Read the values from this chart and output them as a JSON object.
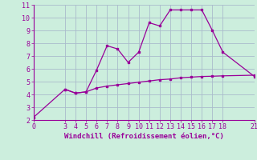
{
  "xlabel": "Windchill (Refroidissement éolien,°C)",
  "bg_color": "#cceedd",
  "grid_color": "#aabbcc",
  "line_color": "#990099",
  "line1_x": [
    0,
    3,
    4,
    5,
    6,
    7,
    8,
    9,
    10,
    11,
    12,
    13,
    14,
    15,
    16,
    17,
    18,
    21
  ],
  "line1_y": [
    2.2,
    4.4,
    4.1,
    4.2,
    4.5,
    4.65,
    4.75,
    4.85,
    4.95,
    5.05,
    5.15,
    5.2,
    5.3,
    5.35,
    5.4,
    5.42,
    5.45,
    5.5
  ],
  "line2_x": [
    3,
    4,
    5,
    6,
    7,
    8,
    9,
    10,
    11,
    12,
    13,
    14,
    15,
    16,
    17,
    18,
    21
  ],
  "line2_y": [
    4.4,
    4.1,
    4.2,
    5.9,
    7.8,
    7.55,
    6.5,
    7.3,
    9.6,
    9.35,
    10.6,
    10.6,
    10.6,
    10.6,
    9.0,
    7.3,
    5.4
  ],
  "xlim": [
    0,
    21
  ],
  "ylim": [
    2,
    11
  ],
  "xticks": [
    0,
    3,
    4,
    5,
    6,
    7,
    8,
    9,
    10,
    11,
    12,
    13,
    14,
    15,
    16,
    17,
    18,
    21
  ],
  "yticks": [
    2,
    3,
    4,
    5,
    6,
    7,
    8,
    9,
    10,
    11
  ]
}
